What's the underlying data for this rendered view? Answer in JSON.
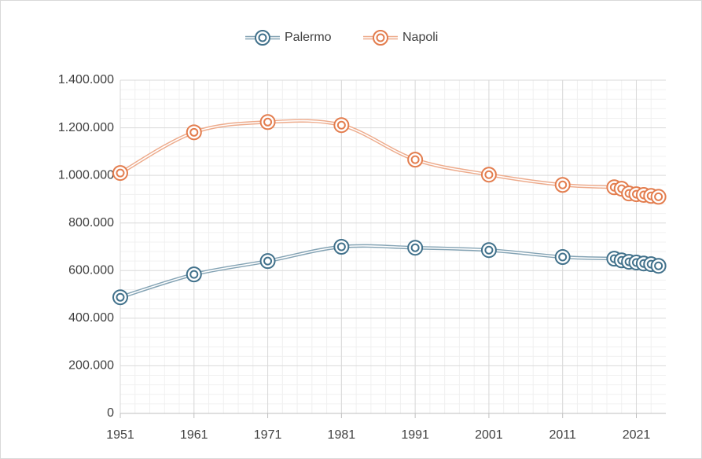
{
  "chart_data": {
    "type": "line",
    "x": [
      1951,
      1961,
      1971,
      1981,
      1991,
      2001,
      2011,
      2018,
      2019,
      2020,
      2021,
      2022,
      2023,
      2024
    ],
    "series": [
      {
        "name": "Palermo",
        "color": "#41718b",
        "values": [
          488000,
          584000,
          640000,
          700000,
          696000,
          686000,
          657000,
          650000,
          643000,
          637000,
          634000,
          630000,
          627000,
          620000
        ]
      },
      {
        "name": "Napoli",
        "color": "#e37d4e",
        "values": [
          1010000,
          1181000,
          1224000,
          1211000,
          1066000,
          1003000,
          960000,
          950000,
          944000,
          924000,
          921000,
          918000,
          914000,
          910000
        ]
      }
    ],
    "xlim": [
      1951,
      2025
    ],
    "xticks": [
      1951,
      1961,
      1971,
      1981,
      1991,
      2001,
      2011,
      2021
    ],
    "ylim": [
      0,
      1400000
    ],
    "yticks": [
      0,
      {
        "value": 200000,
        "label": "200.000"
      },
      {
        "value": 400000,
        "label": "400.000"
      },
      {
        "value": 600000,
        "label": "600.000"
      },
      {
        "value": 800000,
        "label": "800.000"
      },
      {
        "value": 1000000,
        "label": "1.000.000"
      },
      {
        "value": 1200000,
        "label": "1.200.000"
      },
      {
        "value": 1400000,
        "label": "1.400.000"
      }
    ],
    "grid": true,
    "smooth": true,
    "legend": "top"
  }
}
